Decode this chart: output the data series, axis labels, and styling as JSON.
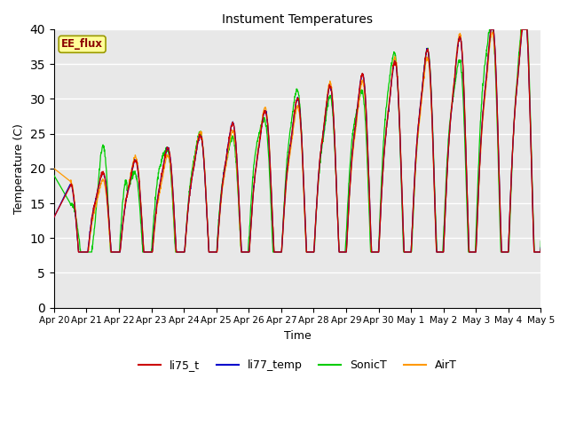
{
  "title": "Instument Temperatures",
  "xlabel": "Time",
  "ylabel": "Temperature (C)",
  "ylim": [
    0,
    40
  ],
  "yticks": [
    0,
    5,
    10,
    15,
    20,
    25,
    30,
    35,
    40
  ],
  "background_color": "#e8e8e8",
  "annotation_text": "EE_flux",
  "annotation_color": "#8b0000",
  "annotation_bg": "#ffff99",
  "annotation_border": "#999900",
  "series_colors": {
    "li75_t": "#cc0000",
    "li77_temp": "#0000cc",
    "SonicT": "#00cc00",
    "AirT": "#ff9900"
  },
  "tick_labels": [
    "Apr 20",
    "Apr 21",
    "Apr 22",
    "Apr 23",
    "Apr 24",
    "Apr 25",
    "Apr 26",
    "Apr 27",
    "Apr 28",
    "Apr 29",
    "Apr 30",
    "May 1",
    "May 2",
    "May 3",
    "May 4",
    "May 5"
  ],
  "tick_positions": [
    0,
    1,
    2,
    3,
    4,
    5,
    6,
    7,
    8,
    9,
    10,
    11,
    12,
    13,
    14,
    15
  ]
}
